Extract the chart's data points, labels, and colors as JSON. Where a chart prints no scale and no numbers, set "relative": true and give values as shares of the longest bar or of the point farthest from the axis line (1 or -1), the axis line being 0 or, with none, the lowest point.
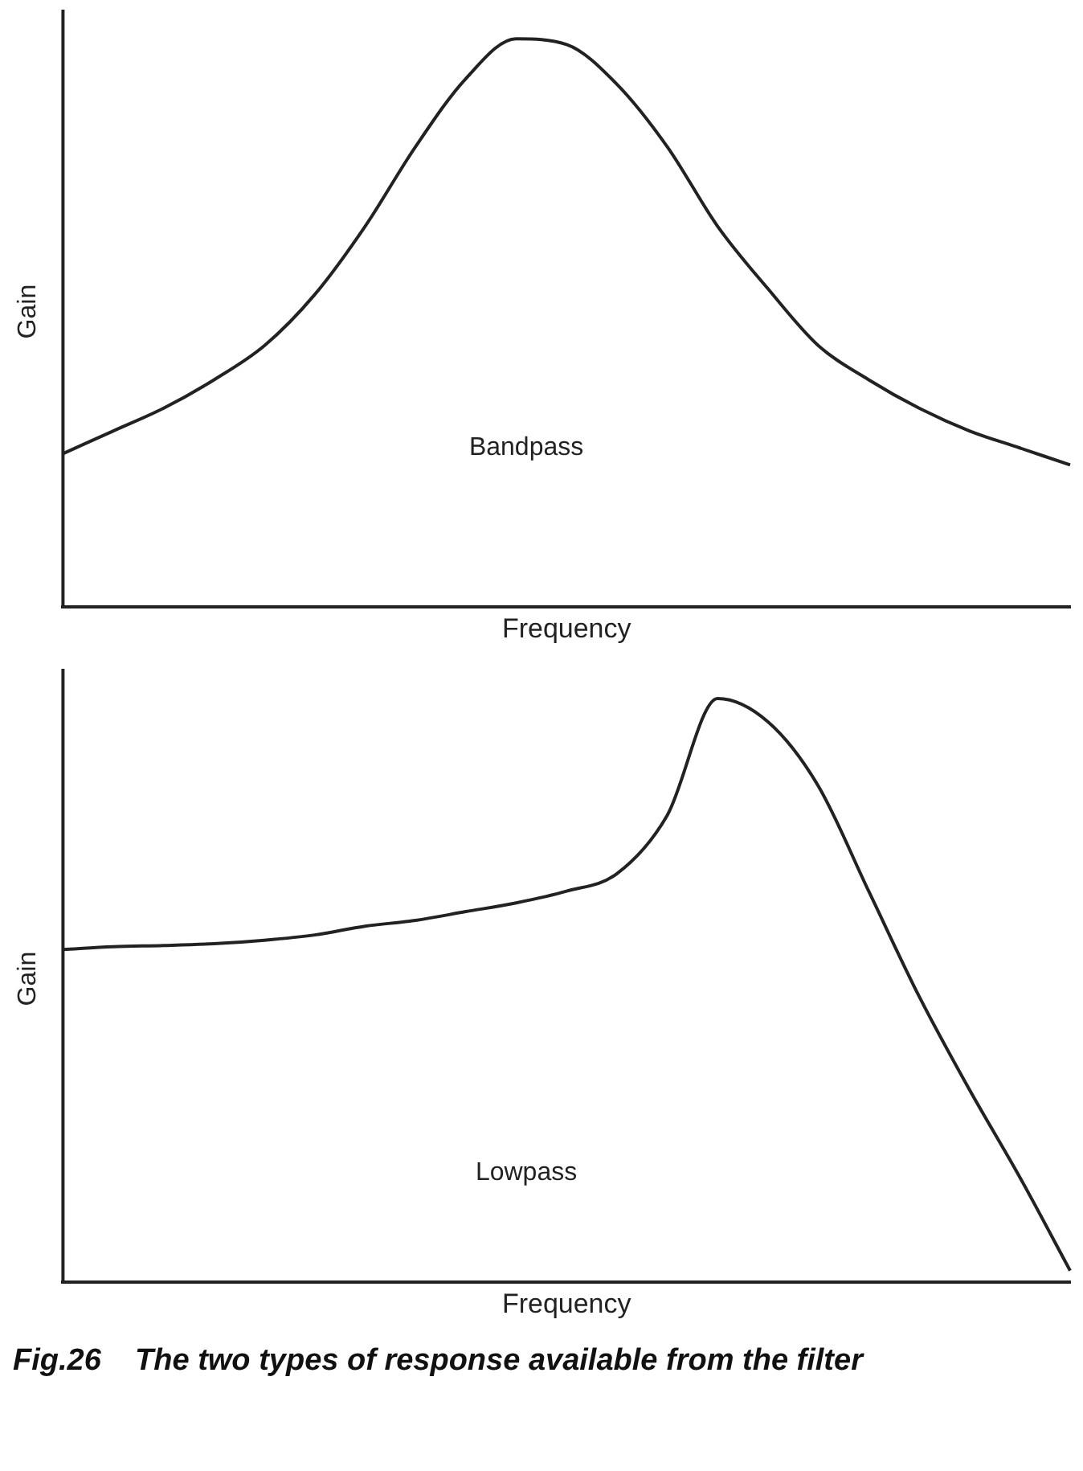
{
  "chart_data": [
    {
      "type": "line",
      "relative": true,
      "xlabel": "Frequency",
      "ylabel": "Gain",
      "annotations": [
        "Bandpass"
      ],
      "color": "#222222",
      "categories": [
        null,
        null,
        null,
        null,
        null,
        null,
        null,
        null,
        null,
        null,
        null,
        null,
        null,
        null,
        null,
        null,
        null,
        null,
        null,
        null,
        null
      ],
      "values": [
        0.27,
        0.31,
        0.35,
        0.4,
        0.46,
        0.55,
        0.67,
        0.81,
        0.93,
        1.0,
        0.99,
        0.92,
        0.81,
        0.67,
        0.56,
        0.46,
        0.4,
        0.35,
        0.31,
        0.28,
        0.25
      ]
    },
    {
      "type": "line",
      "relative": true,
      "xlabel": "Frequency",
      "ylabel": "Gain",
      "annotations": [
        "Lowpass",
        "Fig.26    The two types of response available from the filter"
      ],
      "color": "#222222",
      "categories": [
        null,
        null,
        null,
        null,
        null,
        null,
        null,
        null,
        null,
        null,
        null,
        null,
        null,
        null,
        null,
        null,
        null,
        null,
        null,
        null,
        null
      ],
      "values": [
        0.57,
        0.575,
        0.577,
        0.58,
        0.586,
        0.595,
        0.61,
        0.62,
        0.635,
        0.65,
        0.67,
        0.7,
        0.8,
        1.0,
        0.96,
        0.85,
        0.67,
        0.49,
        0.33,
        0.18,
        0.02
      ]
    }
  ]
}
